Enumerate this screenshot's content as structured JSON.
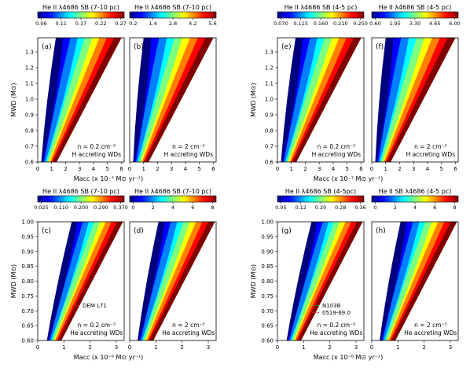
{
  "colors": {
    "colormap": [
      "#00007f",
      "#0000ff",
      "#007fff",
      "#00ffff",
      "#7fff7f",
      "#ffff00",
      "#ff7f00",
      "#ff0000",
      "#7f0000"
    ],
    "ann_green": "#2ca02c",
    "ann_red": "#d62728"
  },
  "chart_data": [
    {
      "id": "a",
      "type": "heatmap",
      "panel_label": "(a)",
      "colorbar_title": "He II λ4686 SB (7-10 pc)",
      "colorbar_ticks": [
        "0.06",
        "0.11",
        "0.17",
        "0.22",
        "0.27"
      ],
      "x_ticks": [
        "0",
        "1",
        "2",
        "3",
        "4",
        "5",
        "6"
      ],
      "y_ticks": [
        "0.6",
        "0.7",
        "0.8",
        "0.9",
        "1.0",
        "1.1",
        "1.2",
        "1.3"
      ],
      "xlim": [
        0,
        6.2
      ],
      "ylim": [
        0.6,
        1.39
      ],
      "xlabel": "Ṁacc (x 10⁻⁷ M⊙ yr⁻¹)",
      "ylabel": "MWD (M⊙)",
      "annotation": [
        "n = 0.2 cm⁻³",
        "H accreting WDs"
      ],
      "legend": []
    },
    {
      "id": "b",
      "type": "heatmap",
      "panel_label": "(b)",
      "colorbar_title": "He II λ4686 SB (7-10 pc)",
      "colorbar_ticks": [
        "0.2",
        "1.4",
        "2.8",
        "4.2",
        "5.6"
      ],
      "x_ticks": [
        "0",
        "1",
        "2",
        "3",
        "4",
        "5",
        "6"
      ],
      "y_ticks": [],
      "xlim": [
        0,
        6.2
      ],
      "ylim": [
        0.6,
        1.39
      ],
      "xlabel": "",
      "ylabel": "",
      "annotation": [
        "n = 2 cm⁻³",
        "H accreting WDs"
      ],
      "legend": []
    },
    {
      "id": "e",
      "type": "heatmap",
      "panel_label": "(e)",
      "colorbar_title": "He II λ4686 SB (4-5 pc)",
      "colorbar_ticks": [
        "0.070",
        "0.115",
        "0.160",
        "0.210",
        "0.250"
      ],
      "x_ticks": [
        "0",
        "1",
        "2",
        "3",
        "4",
        "5",
        "6"
      ],
      "y_ticks": [
        "0.6",
        "0.7",
        "0.8",
        "0.9",
        "1.0",
        "1.1",
        "1.2",
        "1.3"
      ],
      "xlim": [
        0,
        6.2
      ],
      "ylim": [
        0.6,
        1.39
      ],
      "xlabel": "Ṁacc (x 10⁻⁷ M⊙ yr⁻¹)",
      "ylabel": "MWD (M⊙)",
      "annotation": [
        "n = 0.2 cm⁻³",
        "H accreting WDs"
      ],
      "legend": []
    },
    {
      "id": "f",
      "type": "heatmap",
      "panel_label": "(f)",
      "colorbar_title": "He II λ4686 SB (4-5 pc)",
      "colorbar_ticks": [
        "0.60",
        "1.95",
        "3.30",
        "4.65",
        "6.00"
      ],
      "x_ticks": [
        "0",
        "1",
        "2",
        "3",
        "4",
        "5",
        "6"
      ],
      "y_ticks": [],
      "xlim": [
        0,
        6.2
      ],
      "ylim": [
        0.6,
        1.39
      ],
      "xlabel": "",
      "ylabel": "",
      "annotation": [
        "n = 2 cm⁻³",
        "H accreting WDs"
      ],
      "legend": []
    },
    {
      "id": "c",
      "type": "heatmap",
      "panel_label": "(c)",
      "colorbar_title": "He II λ4686 SB (7-10 pc)",
      "colorbar_ticks": [
        "0.025",
        "0.110",
        "0.200",
        "0.290",
        "0.370"
      ],
      "x_ticks": [
        "0",
        "1",
        "2",
        "3"
      ],
      "y_ticks": [
        "0.60",
        "0.65",
        "0.70",
        "0.75",
        "0.80",
        "0.85",
        "0.90",
        "0.95",
        "1.00"
      ],
      "xlim": [
        0,
        3.3
      ],
      "ylim": [
        0.6,
        1.0
      ],
      "xlabel": "Ṁacc (x 10⁻⁶ M⊙ yr⁻¹)",
      "ylabel": "MWD (M⊙)",
      "annotation": [
        "n = 0.2 cm⁻³",
        "He accreting WDs"
      ],
      "legend": [
        {
          "label": "DEM L71",
          "color": "#d62728"
        }
      ]
    },
    {
      "id": "d",
      "type": "heatmap",
      "panel_label": "(d)",
      "colorbar_title": "He II λ4686 SB (7-10 pc)",
      "colorbar_ticks": [
        "0",
        "2",
        "4",
        "6",
        "8"
      ],
      "x_ticks": [
        "0",
        "1",
        "2",
        "3"
      ],
      "y_ticks": [],
      "xlim": [
        0,
        3.3
      ],
      "ylim": [
        0.6,
        1.0
      ],
      "xlabel": "",
      "ylabel": "",
      "annotation": [
        "n = 2 cm⁻³",
        "He accreting WDs"
      ],
      "legend": []
    },
    {
      "id": "g",
      "type": "heatmap",
      "panel_label": "(g)",
      "colorbar_title": "He II λ4686 SB (4-5pc)",
      "colorbar_ticks": [
        "0.05",
        "0.12",
        "0.20",
        "0.28",
        "0.36"
      ],
      "x_ticks": [
        "0",
        "1",
        "2",
        "3"
      ],
      "y_ticks": [
        "0.60",
        "0.65",
        "0.70",
        "0.75",
        "0.80",
        "0.85",
        "0.90",
        "0.95",
        "1.00"
      ],
      "xlim": [
        0,
        3.3
      ],
      "ylim": [
        0.6,
        1.0
      ],
      "xlabel": "Ṁacc (x 10⁻⁶ M⊙ yr⁻¹)",
      "ylabel": "MWD (M⊙)",
      "annotation": [
        "n = 0.2 cm⁻³",
        "He accreting WDs"
      ],
      "legend": [
        {
          "label": "N103B",
          "color": "#2ca02c"
        },
        {
          "label": "0519-69.0",
          "color": "#d62728"
        }
      ]
    },
    {
      "id": "h",
      "type": "heatmap",
      "panel_label": "(h)",
      "colorbar_title": "He II SB λ4686 (4-5 pc)",
      "colorbar_ticks": [
        "0",
        "2",
        "4",
        "6",
        "8"
      ],
      "x_ticks": [
        "0",
        "1",
        "2",
        "3"
      ],
      "y_ticks": [],
      "xlim": [
        0,
        3.3
      ],
      "ylim": [
        0.6,
        1.0
      ],
      "xlabel": "",
      "ylabel": "",
      "annotation": [
        "n = 2 cm⁻³",
        "He accreting WDs"
      ],
      "legend": []
    }
  ]
}
